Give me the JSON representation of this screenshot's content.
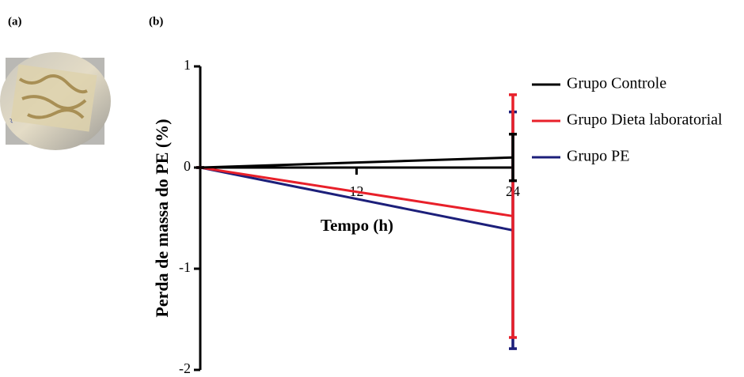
{
  "panels": {
    "a": "(a)",
    "b": "(b)"
  },
  "chart_data": {
    "type": "line",
    "ylabel": "Perda de massa do PE (%)",
    "xlabel": "Tempo (h)",
    "x": [
      0,
      24
    ],
    "xlim": [
      0,
      24
    ],
    "xticks": [
      12,
      24
    ],
    "ylim": [
      -2,
      1
    ],
    "yticks": [
      -2,
      -1,
      0,
      1
    ],
    "series": [
      {
        "name": "Grupo Controle",
        "color": "#000000",
        "values": [
          0,
          0.1
        ],
        "errors": [
          0,
          0.23
        ]
      },
      {
        "name": "Grupo Dieta laboratorial",
        "color": "#e8202a",
        "values": [
          0,
          -0.48
        ],
        "errors": [
          0,
          1.2
        ]
      },
      {
        "name": "Grupo PE",
        "color": "#1c1f7a",
        "values": [
          0,
          -0.62
        ],
        "errors": [
          0,
          1.17
        ]
      }
    ]
  }
}
